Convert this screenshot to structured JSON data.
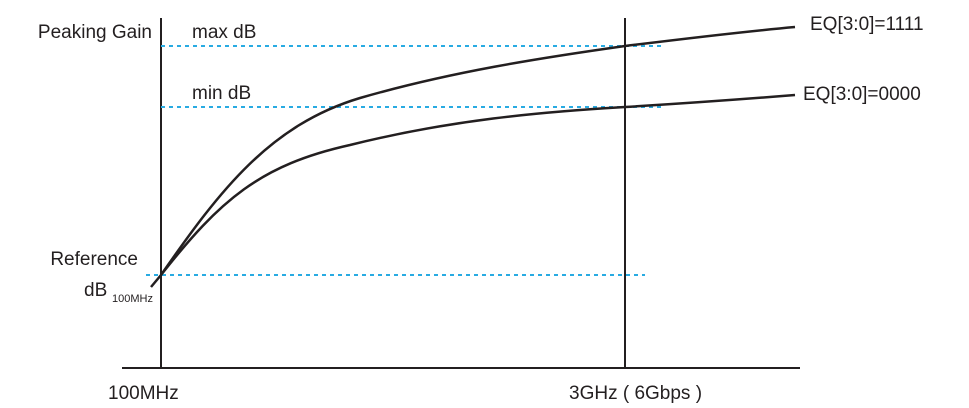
{
  "diagram": {
    "y_axis_label": "Peaking Gain",
    "max_label": "max dB",
    "min_label": "min dB",
    "reference_label": "Reference",
    "reference_db": "dB",
    "reference_sub": "100MHz",
    "x_start_label": "100MHz",
    "x_end_label": "3GHz ( 6Gbps )",
    "curves": [
      {
        "name": "EQ[3:0]=1111"
      },
      {
        "name": "EQ[3:0]=0000"
      }
    ],
    "colors": {
      "axis": "#231f20",
      "curve": "#231f20",
      "guide": "#29abe2"
    }
  }
}
